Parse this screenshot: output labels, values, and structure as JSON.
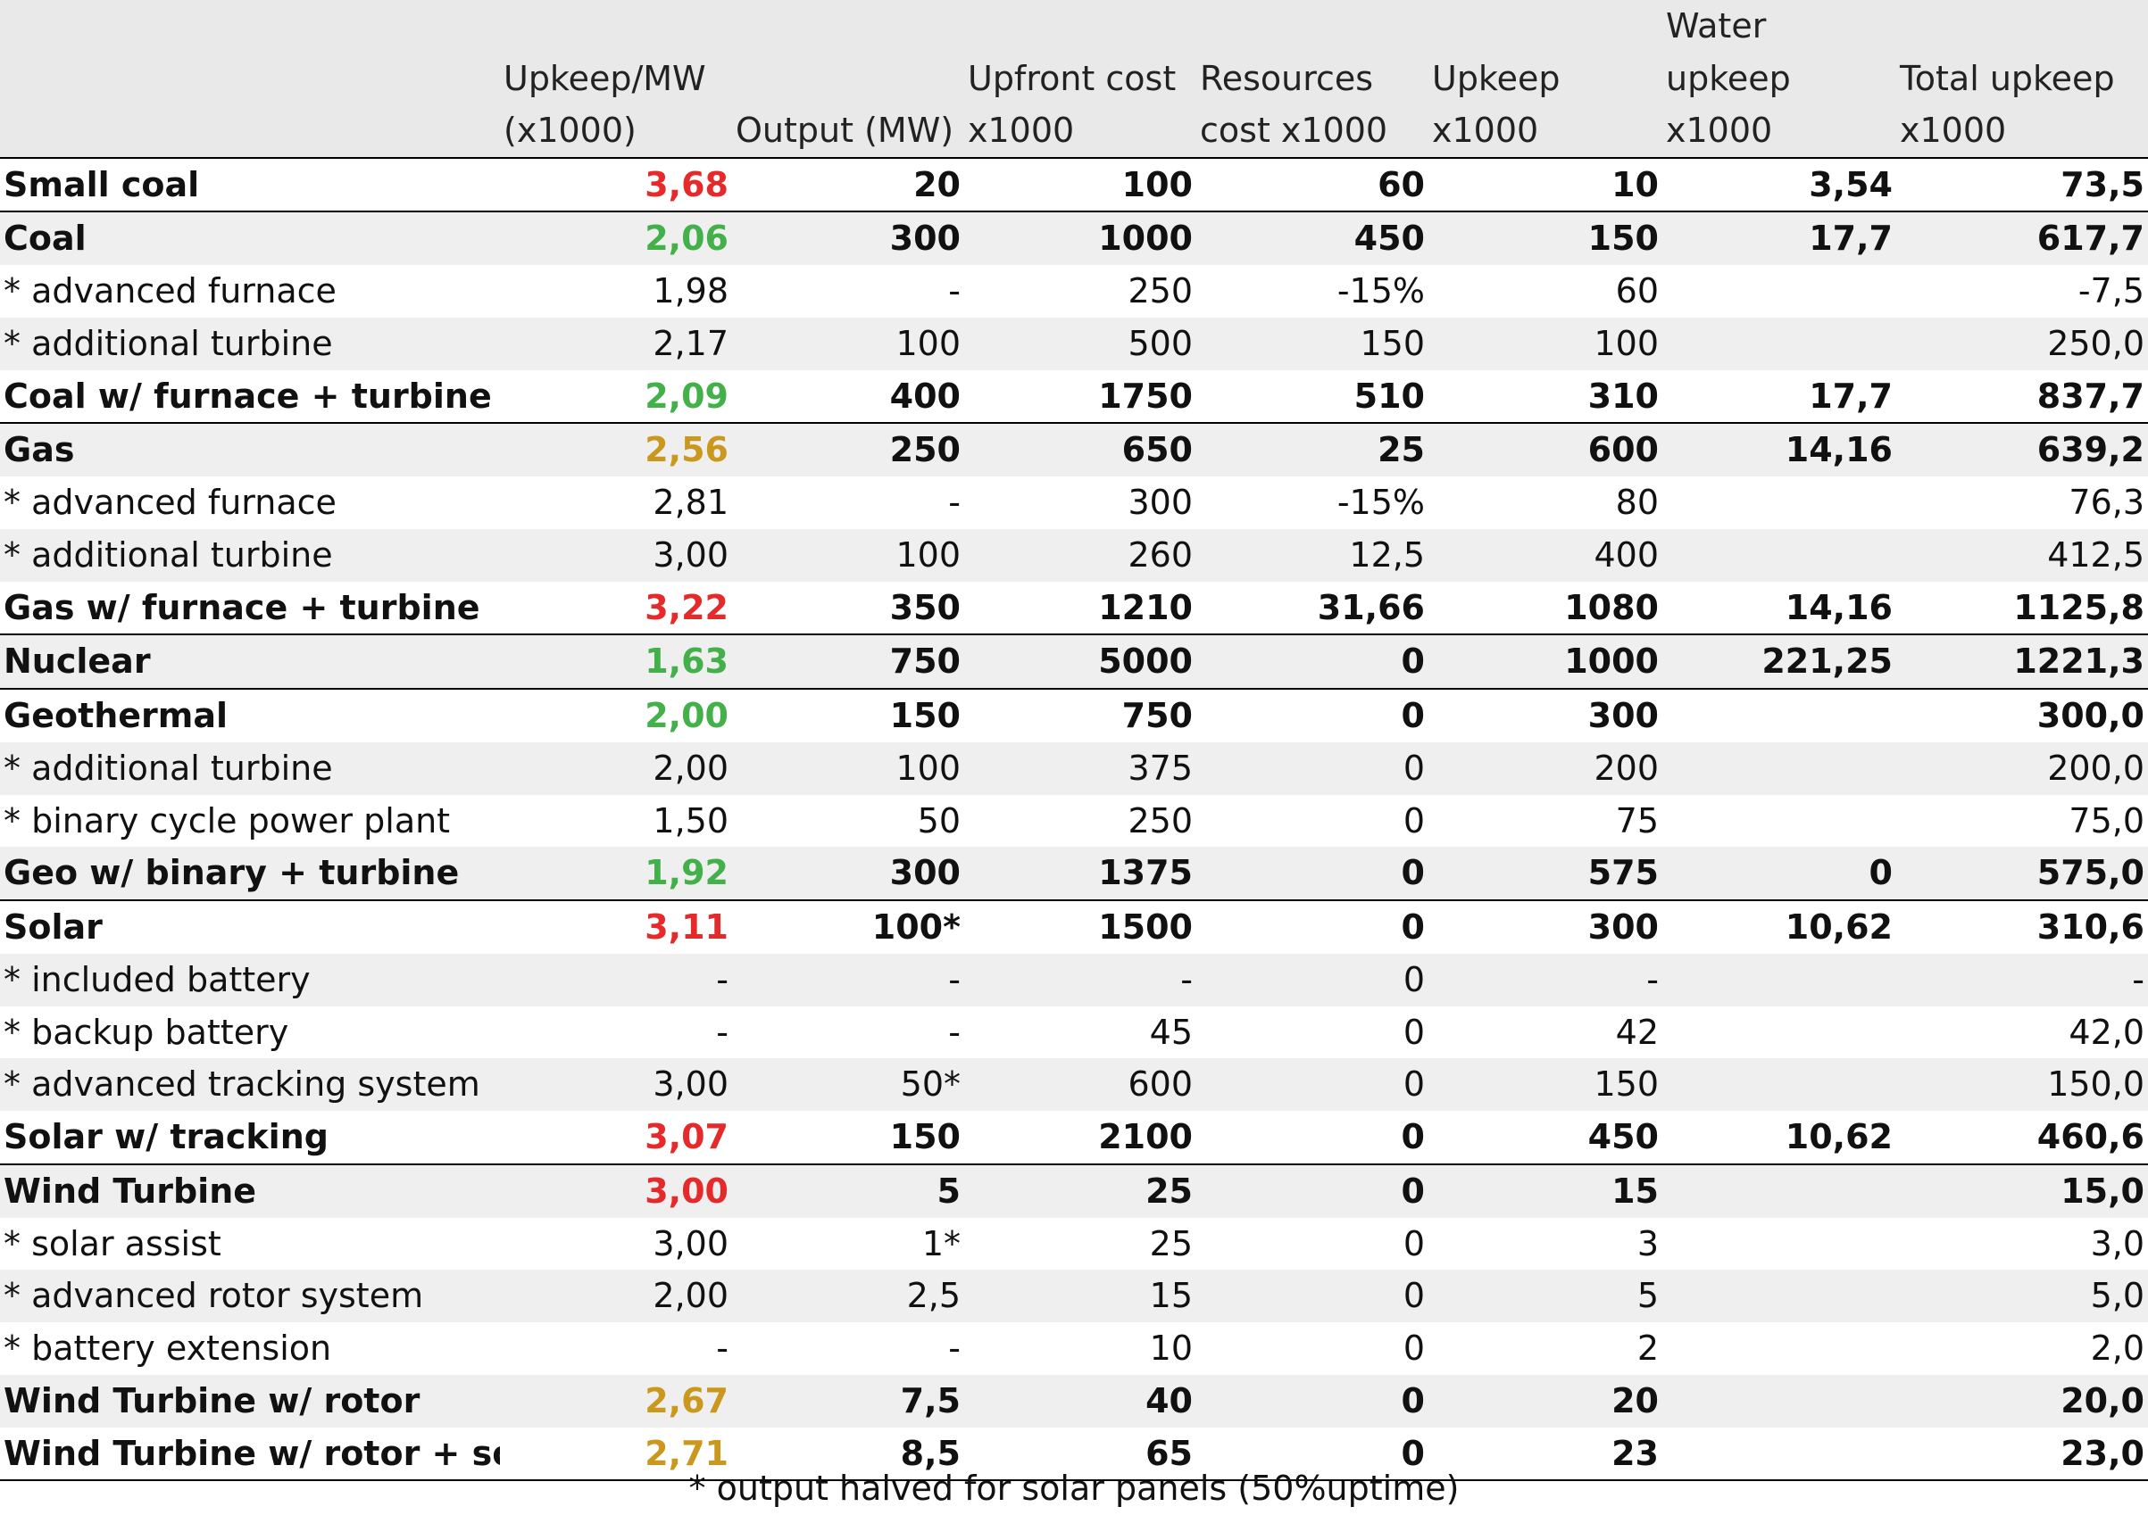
{
  "headers": {
    "row1": [
      "",
      "",
      "",
      "",
      "",
      "",
      "Water",
      ""
    ],
    "row2": [
      "",
      "Upkeep/MW",
      "",
      "Upfront cost",
      "Resources",
      "Upkeep",
      "upkeep",
      "Total upkeep"
    ],
    "row3": [
      "",
      "(x1000)",
      "Output (MW)",
      "x1000",
      "cost x1000",
      "x1000",
      "x1000",
      "x1000"
    ]
  },
  "colors": {
    "red": "#e42a2a",
    "green": "#43b04a",
    "gold": "#c9981d",
    "black": "#111111"
  },
  "rows": [
    {
      "name": "Small coal",
      "upkeep_mw": "3,68",
      "upkeep_mw_color": "red",
      "output": "20",
      "upfront": "100",
      "resources": "60",
      "upkeep": "10",
      "water": "3,54",
      "total": "73,5",
      "main": true,
      "group_end": true
    },
    {
      "name": "Coal",
      "upkeep_mw": "2,06",
      "upkeep_mw_color": "green",
      "output": "300",
      "upfront": "1000",
      "resources": "450",
      "upkeep": "150",
      "water": "17,7",
      "total": "617,7",
      "main": true
    },
    {
      "name": "* advanced furnace",
      "upkeep_mw": "1,98",
      "upkeep_mw_color": "black",
      "output": "-",
      "upfront": "250",
      "resources": "-15%",
      "upkeep": "60",
      "water": "",
      "total": "-7,5"
    },
    {
      "name": "* additional turbine",
      "upkeep_mw": "2,17",
      "upkeep_mw_color": "black",
      "output": "100",
      "upfront": "500",
      "resources": "150",
      "upkeep": "100",
      "water": "",
      "total": "250,0"
    },
    {
      "name": "Coal w/ furnace + turbine",
      "upkeep_mw": "2,09",
      "upkeep_mw_color": "green",
      "output": "400",
      "upfront": "1750",
      "resources": "510",
      "upkeep": "310",
      "water": "17,7",
      "total": "837,7",
      "main": true,
      "group_end": true
    },
    {
      "name": "Gas",
      "upkeep_mw": "2,56",
      "upkeep_mw_color": "gold",
      "output": "250",
      "upfront": "650",
      "resources": "25",
      "upkeep": "600",
      "water": "14,16",
      "total": "639,2",
      "main": true
    },
    {
      "name": "* advanced furnace",
      "upkeep_mw": "2,81",
      "upkeep_mw_color": "black",
      "output": "-",
      "upfront": "300",
      "resources": "-15%",
      "upkeep": "80",
      "water": "",
      "total": "76,3"
    },
    {
      "name": "* additional turbine",
      "upkeep_mw": "3,00",
      "upkeep_mw_color": "black",
      "output": "100",
      "upfront": "260",
      "resources": "12,5",
      "upkeep": "400",
      "water": "",
      "total": "412,5"
    },
    {
      "name": "Gas w/ furnace + turbine",
      "upkeep_mw": "3,22",
      "upkeep_mw_color": "red",
      "output": "350",
      "upfront": "1210",
      "resources": "31,66",
      "upkeep": "1080",
      "water": "14,16",
      "total": "1125,8",
      "main": true,
      "group_end": true
    },
    {
      "name": "Nuclear",
      "upkeep_mw": "1,63",
      "upkeep_mw_color": "green",
      "output": "750",
      "upfront": "5000",
      "resources": "0",
      "upkeep": "1000",
      "water": "221,25",
      "total": "1221,3",
      "main": true,
      "group_end": true
    },
    {
      "name": "Geothermal",
      "upkeep_mw": "2,00",
      "upkeep_mw_color": "green",
      "output": "150",
      "upfront": "750",
      "resources": "0",
      "upkeep": "300",
      "water": "",
      "total": "300,0",
      "main": true
    },
    {
      "name": "* additional turbine",
      "upkeep_mw": "2,00",
      "upkeep_mw_color": "black",
      "output": "100",
      "upfront": "375",
      "resources": "0",
      "upkeep": "200",
      "water": "",
      "total": "200,0"
    },
    {
      "name": "* binary cycle power plant",
      "upkeep_mw": "1,50",
      "upkeep_mw_color": "black",
      "output": "50",
      "upfront": "250",
      "resources": "0",
      "upkeep": "75",
      "water": "",
      "total": "75,0"
    },
    {
      "name": "Geo w/ binary +  turbine",
      "upkeep_mw": "1,92",
      "upkeep_mw_color": "green",
      "output": "300",
      "upfront": "1375",
      "resources": "0",
      "upkeep": "575",
      "water": "0",
      "total": "575,0",
      "main": true,
      "group_end": true
    },
    {
      "name": "Solar",
      "upkeep_mw": "3,11",
      "upkeep_mw_color": "red",
      "output": "100*",
      "upfront": "1500",
      "resources": "0",
      "upkeep": "300",
      "water": "10,62",
      "total": "310,6",
      "main": true
    },
    {
      "name": "* included battery",
      "upkeep_mw": "-",
      "upkeep_mw_color": "black",
      "output": "-",
      "upfront": "-",
      "resources": "0",
      "upkeep": "-",
      "water": "",
      "total": "-"
    },
    {
      "name": "* backup battery",
      "upkeep_mw": "-",
      "upkeep_mw_color": "black",
      "output": "-",
      "upfront": "45",
      "resources": "0",
      "upkeep": "42",
      "water": "",
      "total": "42,0"
    },
    {
      "name": "* advanced tracking system",
      "upkeep_mw": "3,00",
      "upkeep_mw_color": "black",
      "output": "50*",
      "upfront": "600",
      "resources": "0",
      "upkeep": "150",
      "water": "",
      "total": "150,0"
    },
    {
      "name": "Solar w/ tracking",
      "upkeep_mw": "3,07",
      "upkeep_mw_color": "red",
      "output": "150",
      "upfront": "2100",
      "resources": "0",
      "upkeep": "450",
      "water": "10,62",
      "total": "460,6",
      "main": true,
      "group_end": true
    },
    {
      "name": "Wind Turbine",
      "upkeep_mw": "3,00",
      "upkeep_mw_color": "red",
      "output": "5",
      "upfront": "25",
      "resources": "0",
      "upkeep": "15",
      "water": "",
      "total": "15,0",
      "main": true
    },
    {
      "name": "* solar assist",
      "upkeep_mw": "3,00",
      "upkeep_mw_color": "black",
      "output": "1*",
      "upfront": "25",
      "resources": "0",
      "upkeep": "3",
      "water": "",
      "total": "3,0"
    },
    {
      "name": "* advanced rotor system",
      "upkeep_mw": "2,00",
      "upkeep_mw_color": "black",
      "output": "2,5",
      "upfront": "15",
      "resources": "0",
      "upkeep": "5",
      "water": "",
      "total": "5,0"
    },
    {
      "name": "* battery extension",
      "upkeep_mw": "-",
      "upkeep_mw_color": "black",
      "output": "-",
      "upfront": "10",
      "resources": "0",
      "upkeep": "2",
      "water": "",
      "total": "2,0"
    },
    {
      "name": "Wind Turbine w/ rotor",
      "upkeep_mw": "2,67",
      "upkeep_mw_color": "gold",
      "output": "7,5",
      "upfront": "40",
      "resources": "0",
      "upkeep": "20",
      "water": "",
      "total": "20,0",
      "main": true
    },
    {
      "name": "Wind Turbine w/ rotor + solar",
      "upkeep_mw": "2,71",
      "upkeep_mw_color": "gold",
      "output": "8,5",
      "upfront": "65",
      "resources": "0",
      "upkeep": "23",
      "water": "",
      "total": "23,0",
      "main": true,
      "group_end": true
    }
  ],
  "footnote": "* output halved for solar panels (50%uptime)"
}
